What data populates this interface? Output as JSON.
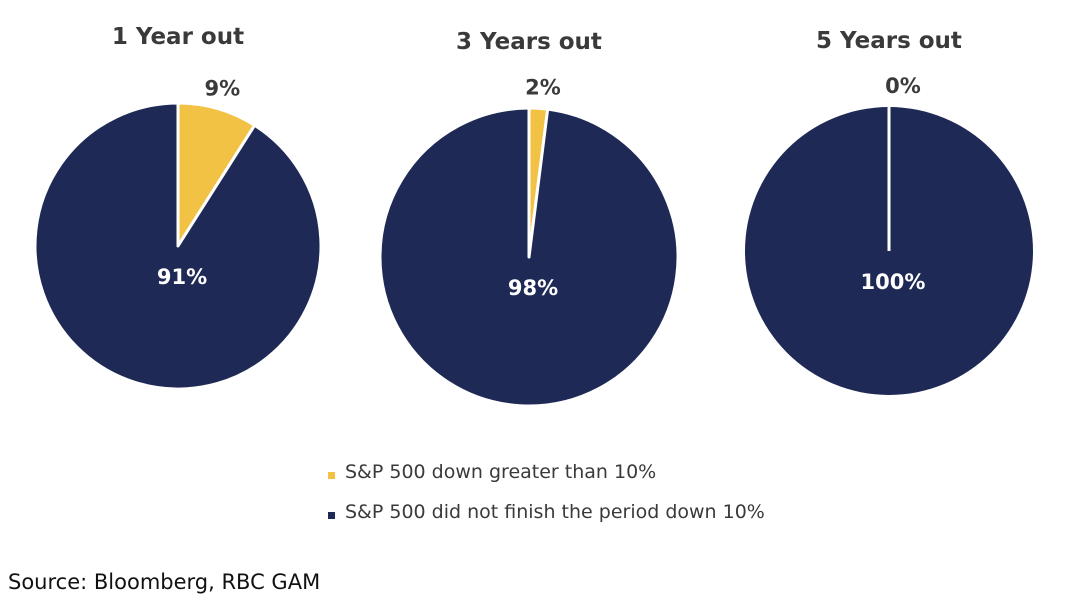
{
  "colors": {
    "down": "#F2C245",
    "not_down": "#1E2A55",
    "divider": "#ffffff"
  },
  "chart_data": [
    {
      "type": "pie",
      "title": "1 Year out",
      "slices": [
        {
          "series": "down",
          "value": 9,
          "label": "9%"
        },
        {
          "series": "not_down",
          "value": 91,
          "label": "91%"
        }
      ]
    },
    {
      "type": "pie",
      "title": "3 Years out",
      "slices": [
        {
          "series": "down",
          "value": 2,
          "label": "2%"
        },
        {
          "series": "not_down",
          "value": 98,
          "label": "98%"
        }
      ]
    },
    {
      "type": "pie",
      "title": "5 Years out",
      "slices": [
        {
          "series": "down",
          "value": 0,
          "label": "0%"
        },
        {
          "series": "not_down",
          "value": 100,
          "label": "100%"
        }
      ]
    }
  ],
  "legend": [
    {
      "series": "down",
      "label": "S&P 500 down greater than 10%"
    },
    {
      "series": "not_down",
      "label": "S&P 500 did not finish the period down 10%"
    }
  ],
  "source": "Source:  Bloomberg, RBC GAM"
}
